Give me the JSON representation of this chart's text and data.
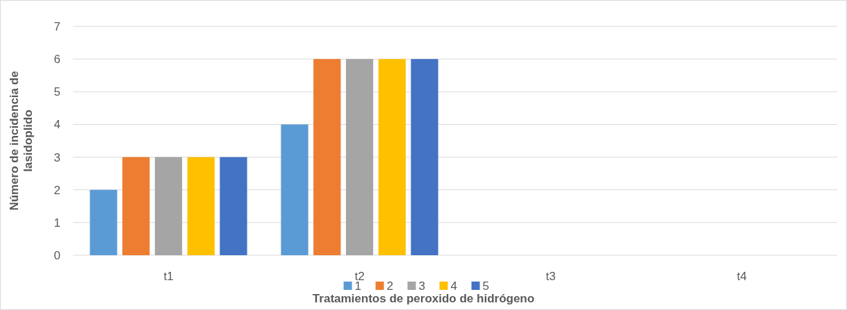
{
  "chart_data": {
    "type": "bar",
    "xlabel": "Tratamientos de peroxido de hidrógeno",
    "ylabel": "Número de incidencia de lasidoplido",
    "categories": [
      "t1",
      "t2",
      "t3",
      "t4"
    ],
    "series": [
      {
        "name": "1",
        "color": "#5b9bd5",
        "values": [
          2,
          4,
          0,
          0
        ]
      },
      {
        "name": "2",
        "color": "#ed7d31",
        "values": [
          3,
          6,
          0,
          0
        ]
      },
      {
        "name": "3",
        "color": "#a5a5a5",
        "values": [
          3,
          6,
          0,
          0
        ]
      },
      {
        "name": "4",
        "color": "#ffc000",
        "values": [
          3,
          6,
          0,
          0
        ]
      },
      {
        "name": "5",
        "color": "#4472c4",
        "values": [
          3,
          6,
          0,
          0
        ]
      }
    ],
    "ylim": [
      0,
      7
    ],
    "yticks": [
      0,
      1,
      2,
      3,
      4,
      5,
      6,
      7
    ],
    "grid": "y",
    "legend": "bottom"
  }
}
